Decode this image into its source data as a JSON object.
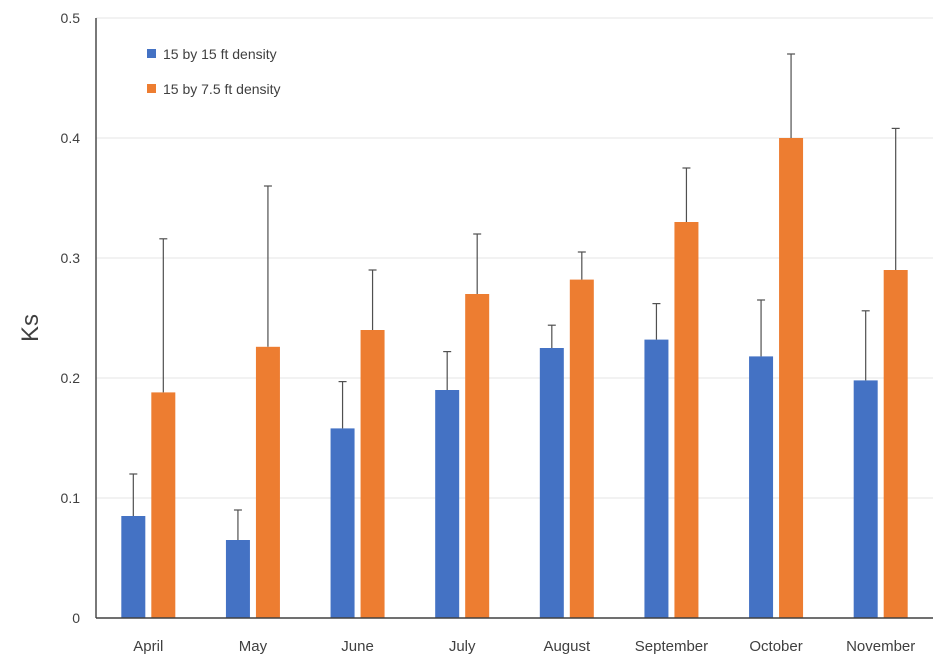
{
  "chart_data": {
    "type": "bar",
    "ylabel": "Ks",
    "xlabel": "",
    "ylim": [
      0,
      0.5
    ],
    "yticks": [
      0,
      0.1,
      0.2,
      0.3,
      0.4,
      0.5
    ],
    "ytick_labels": [
      "0",
      "0.1",
      "0.2",
      "0.3",
      "0.4",
      "0.5"
    ],
    "grid": true,
    "legend_position": "top-left",
    "categories": [
      "April",
      "May",
      "June",
      "July",
      "August",
      "September",
      "October",
      "November"
    ],
    "series": [
      {
        "name": "15 by 15 ft density",
        "color": "#4472c4",
        "values": [
          0.085,
          0.065,
          0.158,
          0.19,
          0.225,
          0.232,
          0.218,
          0.198
        ],
        "error_upper": [
          0.12,
          0.09,
          0.197,
          0.222,
          0.244,
          0.262,
          0.265,
          0.256
        ]
      },
      {
        "name": "15 by 7.5 ft density",
        "color": "#ed7d31",
        "values": [
          0.188,
          0.226,
          0.24,
          0.27,
          0.282,
          0.33,
          0.4,
          0.29
        ],
        "error_upper": [
          0.316,
          0.36,
          0.29,
          0.32,
          0.305,
          0.375,
          0.47,
          0.408
        ]
      }
    ]
  }
}
